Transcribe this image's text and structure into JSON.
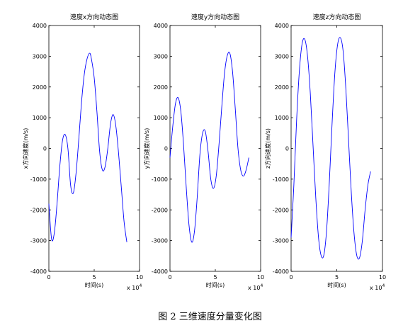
{
  "figure": {
    "caption": "图 2  三维速度分量变化图"
  },
  "chart_data": [
    {
      "type": "line",
      "title": "速度x方向动态图",
      "xlabel": "时间(s)",
      "ylabel": "x方向速度(m/s)",
      "x_multiplier_label": "x 10",
      "x_multiplier_exp": "4",
      "xlim": [
        0,
        10
      ],
      "ylim": [
        -4000,
        4000
      ],
      "xticks": [
        "0",
        "5",
        "10"
      ],
      "yticks": [
        "-4000",
        "-3000",
        "-2000",
        "-1000",
        "0",
        "1000",
        "2000",
        "3000",
        "4000"
      ],
      "series": [
        {
          "color": "#0000ff",
          "x": [
            0.0,
            0.3,
            0.6,
            0.9,
            1.2,
            1.5,
            1.8,
            2.1,
            2.4,
            2.7,
            3.0,
            3.3,
            3.6,
            3.9,
            4.2,
            4.5,
            4.7,
            5.0,
            5.3,
            5.6,
            5.9,
            6.2,
            6.5,
            6.8,
            7.1,
            7.4,
            7.7,
            8.0,
            8.3,
            8.6
          ],
          "values": [
            -1800,
            -2950,
            -2750,
            -1800,
            -600,
            250,
            450,
            0,
            -1200,
            -1450,
            -800,
            300,
            1500,
            2400,
            2900,
            3100,
            2900,
            2300,
            1200,
            -100,
            -700,
            -600,
            0,
            800,
            1100,
            700,
            -200,
            -1300,
            -2400,
            -3050
          ]
        }
      ]
    },
    {
      "type": "line",
      "title": "速度y方向动态图",
      "xlabel": "时间(s)",
      "ylabel": "y方向速度(m/s)",
      "x_multiplier_label": "x 10",
      "x_multiplier_exp": "4",
      "xlim": [
        0,
        10
      ],
      "ylim": [
        -4000,
        4000
      ],
      "xticks": [
        "0",
        "5",
        "10"
      ],
      "yticks": [
        "-4000",
        "-3000",
        "-2000",
        "-1000",
        "0",
        "1000",
        "2000",
        "3000",
        "4000"
      ],
      "series": [
        {
          "color": "#0000ff",
          "x": [
            0.0,
            0.3,
            0.6,
            0.9,
            1.2,
            1.5,
            1.8,
            2.1,
            2.4,
            2.7,
            3.0,
            3.3,
            3.6,
            3.9,
            4.2,
            4.5,
            4.8,
            5.1,
            5.4,
            5.7,
            6.0,
            6.3,
            6.6,
            6.9,
            7.2,
            7.5,
            7.8,
            8.1,
            8.4,
            8.7
          ],
          "values": [
            -300,
            700,
            1450,
            1650,
            1200,
            100,
            -1300,
            -2500,
            -3050,
            -2700,
            -1600,
            -200,
            500,
            550,
            -100,
            -1000,
            -1300,
            -900,
            100,
            1300,
            2400,
            3000,
            3100,
            2500,
            1300,
            0,
            -700,
            -900,
            -700,
            -300
          ]
        }
      ]
    },
    {
      "type": "line",
      "title": "速度z方向动态图",
      "xlabel": "时间(s)",
      "ylabel": "z方向速度(m/s)",
      "x_multiplier_label": "x 10",
      "x_multiplier_exp": "4",
      "xlim": [
        0,
        10
      ],
      "ylim": [
        -4000,
        4000
      ],
      "xticks": [
        "0",
        "5",
        "10"
      ],
      "yticks": [
        "-4000",
        "-3000",
        "-2000",
        "-1000",
        "0",
        "1000",
        "2000",
        "3000",
        "4000"
      ],
      "series": [
        {
          "color": "#0000ff",
          "x": [
            0.0,
            0.3,
            0.6,
            0.9,
            1.2,
            1.5,
            1.8,
            2.1,
            2.4,
            2.7,
            3.0,
            3.3,
            3.6,
            3.9,
            4.2,
            4.5,
            4.8,
            5.1,
            5.4,
            5.7,
            6.0,
            6.3,
            6.6,
            6.9,
            7.2,
            7.5,
            7.8,
            8.1,
            8.4,
            8.7
          ],
          "values": [
            -2900,
            -1200,
            900,
            2500,
            3400,
            3550,
            3000,
            1800,
            100,
            -1600,
            -2900,
            -3500,
            -3450,
            -2600,
            -1000,
            900,
            2500,
            3400,
            3600,
            3150,
            1900,
            200,
            -1500,
            -2800,
            -3500,
            -3550,
            -3000,
            -2000,
            -1200,
            -750
          ]
        }
      ]
    }
  ]
}
